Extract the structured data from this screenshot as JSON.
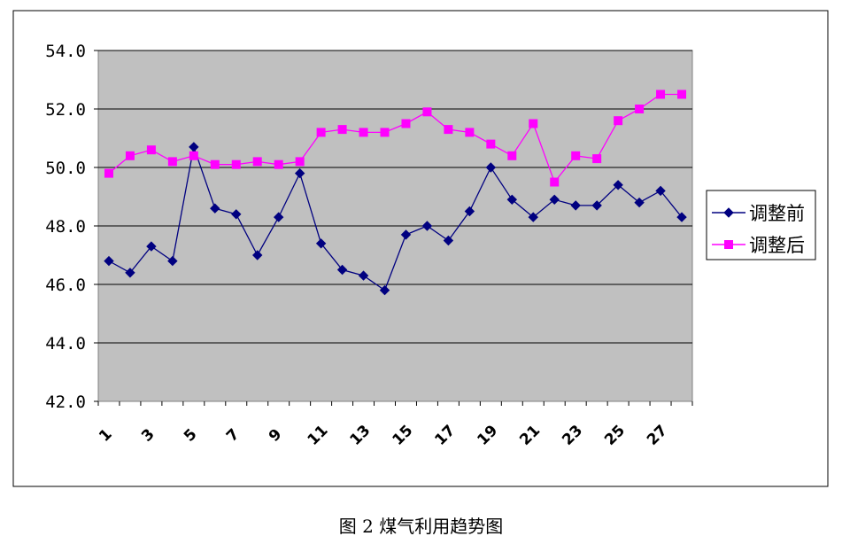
{
  "chart_data": {
    "type": "line",
    "title": "",
    "xlabel": "",
    "ylabel": "",
    "x": [
      1,
      2,
      3,
      4,
      5,
      6,
      7,
      8,
      9,
      10,
      11,
      12,
      13,
      14,
      15,
      16,
      17,
      18,
      19,
      20,
      21,
      22,
      23,
      24,
      25,
      26,
      27,
      28
    ],
    "x_tick_labels": [
      "1",
      "3",
      "5",
      "7",
      "9",
      "11",
      "13",
      "15",
      "17",
      "19",
      "21",
      "23",
      "25",
      "27"
    ],
    "ylim": [
      42.0,
      54.0
    ],
    "y_ticks": [
      "42.0",
      "44.0",
      "46.0",
      "48.0",
      "50.0",
      "52.0",
      "54.0"
    ],
    "grid": "horizontal",
    "legend_position": "right",
    "series": [
      {
        "name": "调整前",
        "color": "#000080",
        "marker": "diamond",
        "values": [
          46.8,
          46.4,
          47.3,
          46.8,
          50.7,
          48.6,
          48.4,
          47.0,
          48.3,
          49.8,
          47.4,
          46.5,
          46.3,
          45.8,
          47.7,
          48.0,
          47.5,
          48.5,
          50.0,
          48.9,
          48.3,
          48.9,
          48.7,
          48.7,
          49.4,
          48.8,
          49.2,
          48.3
        ]
      },
      {
        "name": "调整后",
        "color": "#FF00FF",
        "marker": "square",
        "values": [
          49.8,
          50.4,
          50.6,
          50.2,
          50.4,
          50.1,
          50.1,
          50.2,
          50.1,
          50.2,
          51.2,
          51.3,
          51.2,
          51.2,
          51.5,
          51.9,
          51.3,
          51.2,
          50.8,
          50.4,
          51.5,
          49.5,
          50.4,
          50.3,
          51.6,
          52.0,
          52.5,
          52.5
        ]
      }
    ]
  },
  "caption": "图 2    煤气利用趋势图"
}
